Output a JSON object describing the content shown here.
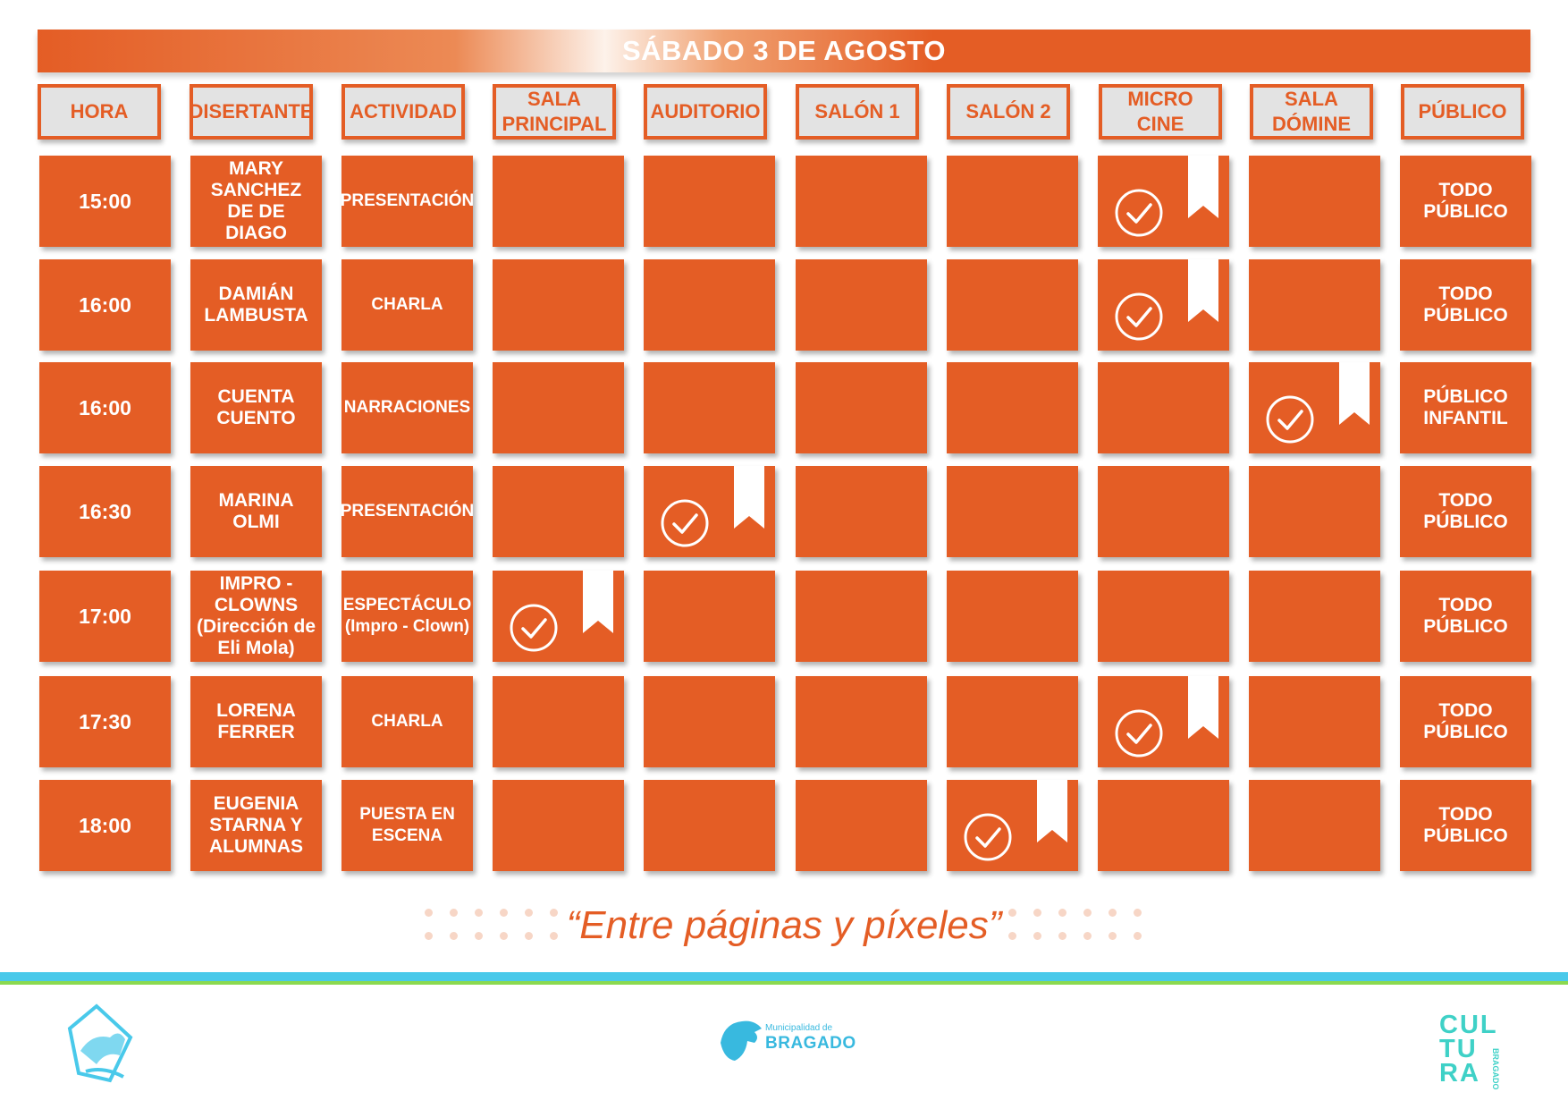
{
  "title": "SÁBADO 3 DE AGOSTO",
  "headers": {
    "hora": "HORA",
    "disertante": "DISERTANTE",
    "actividad": "ACTIVIDAD",
    "sala_principal": "SALA\nPRINCIPAL",
    "auditorio": "AUDITORIO",
    "salon1": "SALÓN 1",
    "salon2": "SALÓN 2",
    "micro_cine": "MICRO\nCINE",
    "sala_domine": "SALA\nDÓMINE",
    "publico": "PÚBLICO"
  },
  "rows": [
    {
      "hora": "15:00",
      "disertante": "MARY\nSANCHEZ\nDE DE\nDIAGO",
      "disertante_note": "",
      "actividad": "PRESENTACIÓN",
      "publico": "TODO\nPÚBLICO",
      "venue": "micro_cine"
    },
    {
      "hora": "16:00",
      "disertante": "DAMIÁN\nLAMBUSTA",
      "disertante_note": "",
      "actividad": "CHARLA",
      "publico": "TODO\nPÚBLICO",
      "venue": "micro_cine"
    },
    {
      "hora": "16:00",
      "disertante": "CUENTA\nCUENTO",
      "disertante_note": "",
      "actividad": "NARRACIONES",
      "publico": "PÚBLICO\nINFANTIL",
      "venue": "sala_domine"
    },
    {
      "hora": "16:30",
      "disertante": "MARINA\nOLMI",
      "disertante_note": "",
      "actividad": "PRESENTACIÓN",
      "publico": "TODO\nPÚBLICO",
      "venue": "auditorio"
    },
    {
      "hora": "17:00",
      "disertante": "IMPRO -\nCLOWNS",
      "disertante_note": "(Dirección de\nEli Mola)",
      "actividad": "ESPECTÁCULO\n(Impro - Clown)",
      "publico": "TODO\nPÚBLICO",
      "venue": "sala_principal"
    },
    {
      "hora": "17:30",
      "disertante": "LORENA\nFERRER",
      "disertante_note": "",
      "actividad": "CHARLA",
      "publico": "TODO\nPÚBLICO",
      "venue": "micro_cine"
    },
    {
      "hora": "18:00",
      "disertante": "EUGENIA\nSTARNA Y\nALUMNAS",
      "disertante_note": "",
      "actividad": "PUESTA EN\nESCENA",
      "publico": "TODO\nPÚBLICO",
      "venue": "salon2"
    }
  ],
  "tagline": "“Entre páginas y píxeles”",
  "logos": {
    "center_small": "Municipalidad de",
    "center_brand": "BRAGADO",
    "right_lines": [
      "CUL",
      "TU",
      "RA"
    ],
    "right_vertical": "BRAGADO"
  },
  "icons": {
    "check": "check-circle-icon",
    "ribbon": "bookmark-ribbon-icon"
  },
  "colors": {
    "accent": "#e45d25",
    "header_bg": "#e3e3e3",
    "line_blue": "#49c9ea",
    "line_green": "#8bd94f",
    "logo_teal": "#3fd1c7"
  }
}
